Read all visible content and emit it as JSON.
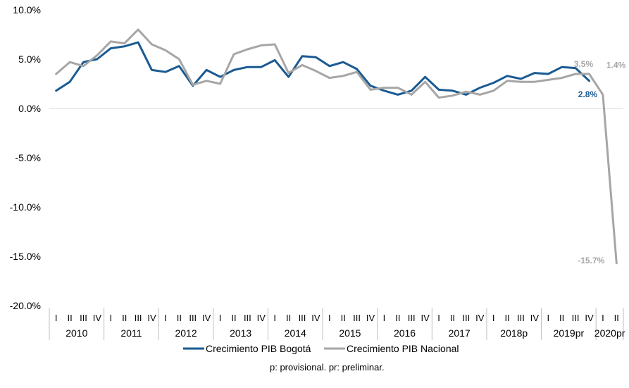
{
  "chart_data": {
    "type": "line",
    "title": "",
    "xlabel": "",
    "ylabel": "",
    "ylim": [
      -20,
      10
    ],
    "yticks": [
      10,
      5,
      0,
      -5,
      -10,
      -15,
      -20
    ],
    "ytick_labels": [
      "10.0%",
      "5.0%",
      "0.0%",
      "-5.0%",
      "-10.0%",
      "-15.0%",
      "-20.0%"
    ],
    "grid": false,
    "legend_position": "bottom",
    "quarter_labels": [
      "I",
      "II",
      "III",
      "IV"
    ],
    "years": [
      "2010",
      "2011",
      "2012",
      "2013",
      "2014",
      "2015",
      "2016",
      "2017",
      "2018p",
      "2019pr",
      "2020pr"
    ],
    "year_quarter_counts": [
      4,
      4,
      4,
      4,
      4,
      4,
      4,
      4,
      4,
      4,
      2
    ],
    "series": [
      {
        "name": "Crecimiento PIB Bogotá",
        "color": "#1a5a92",
        "values": [
          1.8,
          2.7,
          4.7,
          5.0,
          6.1,
          6.3,
          6.7,
          3.9,
          3.7,
          4.3,
          2.3,
          3.9,
          3.2,
          3.9,
          4.2,
          4.2,
          4.9,
          3.2,
          5.3,
          5.2,
          4.3,
          4.7,
          4.0,
          2.3,
          1.8,
          1.4,
          1.8,
          3.2,
          1.9,
          1.8,
          1.4,
          2.1,
          2.6,
          3.3,
          3.0,
          3.6,
          3.5,
          4.2,
          4.1,
          2.8
        ]
      },
      {
        "name": "Crecimiento PIB Nacional",
        "color": "#a6a6a6",
        "values": [
          3.5,
          4.7,
          4.3,
          5.4,
          6.8,
          6.6,
          8.0,
          6.5,
          5.9,
          5.0,
          2.4,
          2.8,
          2.5,
          5.5,
          6.0,
          6.4,
          6.5,
          3.6,
          4.4,
          3.8,
          3.1,
          3.3,
          3.7,
          1.9,
          2.1,
          2.1,
          1.4,
          2.7,
          1.1,
          1.3,
          1.7,
          1.4,
          1.8,
          2.8,
          2.7,
          2.7,
          2.9,
          3.1,
          3.5,
          3.5,
          1.4,
          -15.7
        ]
      }
    ],
    "data_labels": [
      {
        "text": "3.5%",
        "series": 1,
        "index": 39,
        "color": "#a6a6a6"
      },
      {
        "text": "2.8%",
        "series": 0,
        "index": 39,
        "color": "#1a5a92"
      },
      {
        "text": "1.4%",
        "series": 1,
        "index": 40,
        "color": "#a6a6a6"
      },
      {
        "text": "-15.7%",
        "series": 1,
        "index": 41,
        "color": "#a6a6a6"
      }
    ]
  },
  "legend": {
    "items": [
      "Crecimiento PIB Bogotá",
      "Crecimiento PIB Nacional"
    ]
  },
  "note": "p: provisional. pr: preliminar."
}
